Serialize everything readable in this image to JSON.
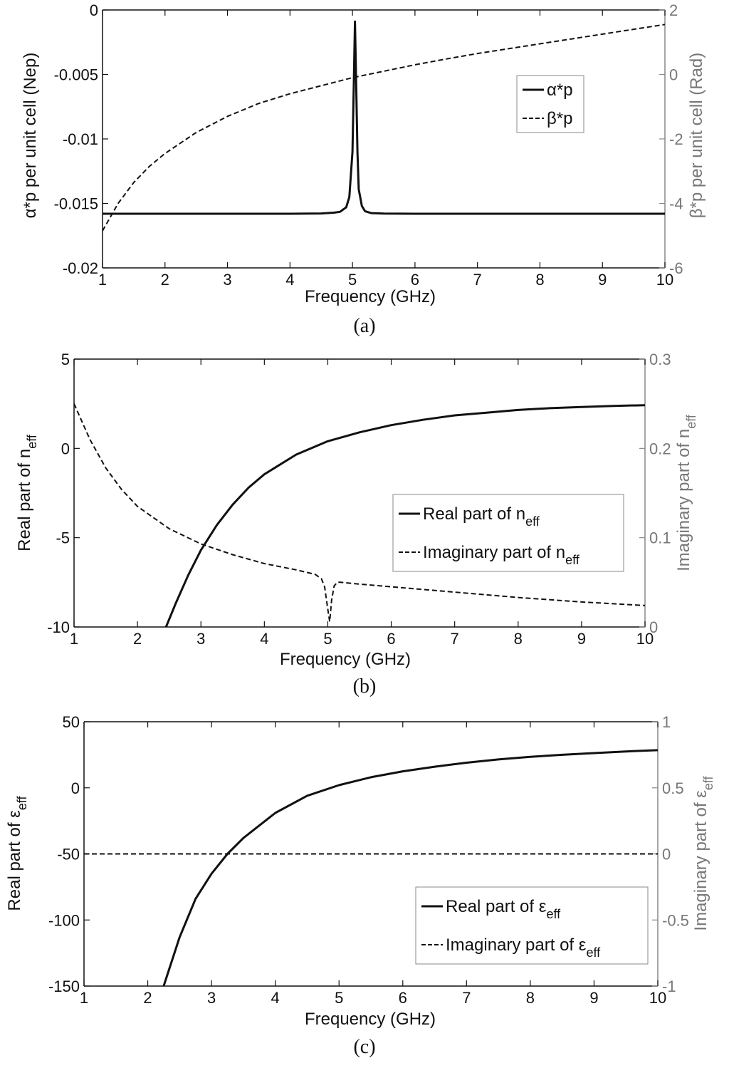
{
  "chart_data": [
    {
      "type": "line",
      "caption": "(a)",
      "xlabel": "Frequency (GHz)",
      "xlim": [
        1,
        10
      ],
      "xticks": [
        1,
        2,
        3,
        4,
        5,
        6,
        7,
        8,
        9,
        10
      ],
      "ylabel_left": "α*p per unit cell (Nep)",
      "ylim_left": [
        -0.02,
        0
      ],
      "yticks_left": [
        -0.02,
        -0.015,
        -0.01,
        -0.005,
        0
      ],
      "ytick_labels_left": [
        "-0.02",
        "-0.015",
        "-0.01",
        "-0.005",
        "0"
      ],
      "ylabel_right": "β*p per unit cell (Rad)",
      "ylim_right": [
        -6,
        2
      ],
      "yticks_right": [
        -6,
        -4,
        -2,
        0,
        2
      ],
      "ytick_labels_right": [
        "-6",
        "-4",
        "-2",
        "0",
        "2"
      ],
      "legend": [
        "α*p",
        "β*p"
      ],
      "series": [
        {
          "name": "α*p",
          "axis": "left",
          "style": "solid",
          "x": [
            1,
            2,
            3,
            4,
            4.5,
            4.7,
            4.8,
            4.9,
            4.95,
            5.0,
            5.02,
            5.04,
            5.06,
            5.08,
            5.1,
            5.15,
            5.2,
            5.3,
            5.5,
            6,
            7,
            8,
            9,
            10
          ],
          "y": [
            -0.0158,
            -0.0158,
            -0.0158,
            -0.0158,
            -0.01578,
            -0.01572,
            -0.01565,
            -0.0153,
            -0.0145,
            -0.011,
            -0.006,
            -0.0009,
            -0.006,
            -0.011,
            -0.0139,
            -0.0152,
            -0.0156,
            -0.01575,
            -0.01579,
            -0.0158,
            -0.0158,
            -0.0158,
            -0.0158,
            -0.0158
          ]
        },
        {
          "name": "β*p",
          "axis": "right",
          "style": "dashed",
          "x": [
            1,
            1.25,
            1.5,
            1.75,
            2,
            2.5,
            3,
            3.5,
            4,
            4.5,
            5,
            5.5,
            6,
            6.5,
            7,
            7.5,
            8,
            8.5,
            9,
            9.5,
            10
          ],
          "y": [
            -4.85,
            -4.0,
            -3.35,
            -2.85,
            -2.45,
            -1.8,
            -1.3,
            -0.9,
            -0.6,
            -0.35,
            -0.1,
            0.1,
            0.3,
            0.48,
            0.65,
            0.8,
            0.95,
            1.1,
            1.25,
            1.4,
            1.55
          ]
        }
      ]
    },
    {
      "type": "line",
      "caption": "(b)",
      "xlabel": "Frequency (GHz)",
      "xlim": [
        1,
        10
      ],
      "xticks": [
        1,
        2,
        3,
        4,
        5,
        6,
        7,
        8,
        9,
        10
      ],
      "ylabel_left": "Real part of n",
      "ylabel_left_sub": "eff",
      "ylim_left": [
        -10,
        5
      ],
      "yticks_left": [
        -10,
        -5,
        0,
        5
      ],
      "ytick_labels_left": [
        "-10",
        "-5",
        "0",
        "5"
      ],
      "ylabel_right": "Imaginary part of n",
      "ylabel_right_sub": "eff",
      "ylim_right": [
        0,
        0.3
      ],
      "yticks_right": [
        0,
        0.1,
        0.2,
        0.3
      ],
      "ytick_labels_right": [
        "0",
        "0.1",
        "0.2",
        "0.3"
      ],
      "legend": [
        "Real part of n",
        "Imaginary part of n"
      ],
      "legend_sub": "eff",
      "series": [
        {
          "name": "Real part of n_eff",
          "axis": "left",
          "style": "solid",
          "x": [
            2.45,
            2.6,
            2.8,
            3,
            3.25,
            3.5,
            3.75,
            4,
            4.5,
            5,
            5.5,
            6,
            6.5,
            7,
            7.5,
            8,
            8.5,
            9,
            9.5,
            10
          ],
          "y": [
            -10,
            -8.7,
            -7.1,
            -5.7,
            -4.3,
            -3.15,
            -2.2,
            -1.45,
            -0.35,
            0.4,
            0.9,
            1.3,
            1.6,
            1.85,
            2.0,
            2.15,
            2.25,
            2.32,
            2.38,
            2.42
          ]
        },
        {
          "name": "Imaginary part of n_eff",
          "axis": "right",
          "style": "dashed",
          "x": [
            1,
            1.25,
            1.5,
            1.75,
            2,
            2.5,
            3,
            3.5,
            4,
            4.5,
            4.8,
            4.9,
            4.95,
            5.0,
            5.03,
            5.06,
            5.1,
            5.15,
            5.2,
            5.5,
            6,
            7,
            8,
            9,
            10
          ],
          "y": [
            0.25,
            0.21,
            0.178,
            0.154,
            0.135,
            0.11,
            0.093,
            0.081,
            0.071,
            0.064,
            0.059,
            0.054,
            0.045,
            0.02,
            0.006,
            0.03,
            0.046,
            0.05,
            0.05,
            0.048,
            0.045,
            0.039,
            0.033,
            0.028,
            0.024
          ]
        }
      ]
    },
    {
      "type": "line",
      "caption": "(c)",
      "xlabel": "Frequency (GHz)",
      "xlim": [
        1,
        10
      ],
      "xticks": [
        1,
        2,
        3,
        4,
        5,
        6,
        7,
        8,
        9,
        10
      ],
      "ylabel_left": "Real part of ε",
      "ylabel_left_sub": "eff",
      "ylim_left": [
        -150,
        50
      ],
      "yticks_left": [
        -150,
        -100,
        -50,
        0,
        50
      ],
      "ytick_labels_left": [
        "-150",
        "-100",
        "-50",
        "0",
        "50"
      ],
      "ylabel_right": "Imaginary part of ε",
      "ylabel_right_sub": "eff",
      "ylim_right": [
        -1,
        1
      ],
      "yticks_right": [
        -1,
        -0.5,
        0,
        0.5,
        1
      ],
      "ytick_labels_right": [
        "-1",
        "-0.5",
        "0",
        "0.5",
        "1"
      ],
      "legend": [
        "Real part of ε",
        "Imaginary part of ε"
      ],
      "legend_sub": "eff",
      "series": [
        {
          "name": "Real part of ε_eff",
          "axis": "left",
          "style": "solid",
          "x": [
            2.25,
            2.5,
            2.75,
            3,
            3.25,
            3.5,
            4,
            4.5,
            5,
            5.5,
            6,
            6.5,
            7,
            7.5,
            8,
            8.5,
            9,
            9.5,
            10
          ],
          "y": [
            -150,
            -113,
            -84,
            -65,
            -50,
            -38,
            -19,
            -6,
            2,
            8,
            12.5,
            16,
            19,
            21.5,
            23.5,
            25,
            26.3,
            27.5,
            28.5
          ]
        },
        {
          "name": "Imaginary part of ε_eff",
          "axis": "right",
          "style": "dashed",
          "x": [
            1,
            10
          ],
          "y": [
            0,
            0
          ]
        }
      ]
    }
  ]
}
